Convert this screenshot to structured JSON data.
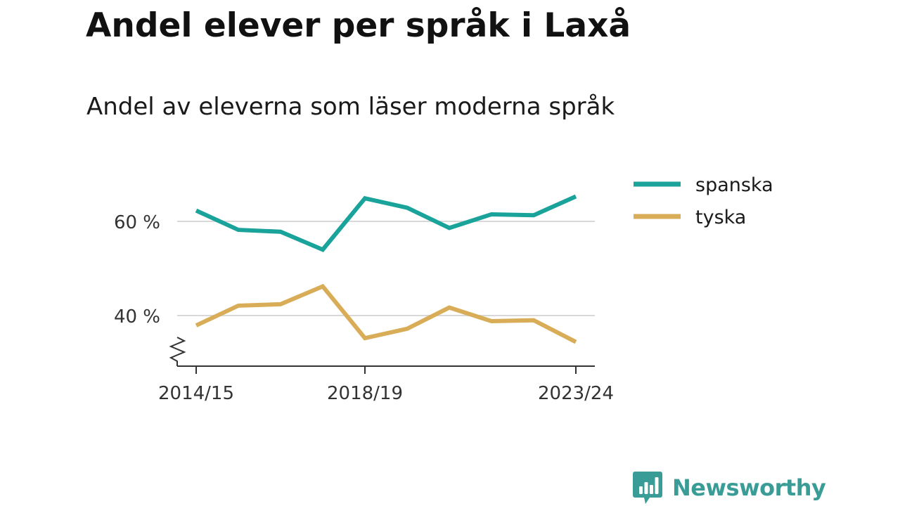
{
  "chart_data": {
    "type": "line",
    "title": "Andel elever per språk i Laxå",
    "subtitle": "Andel av eleverna som läser moderna språk",
    "x": [
      "2014/15",
      "2015/16",
      "2016/17",
      "2017/18",
      "2018/19",
      "2019/20",
      "2020/21",
      "2021/22",
      "2022/23",
      "2023/24"
    ],
    "x_tick_labels": [
      "2014/15",
      "2018/19",
      "2023/24"
    ],
    "series": [
      {
        "name": "spanska",
        "color": "#1aa39a",
        "values": [
          62.3,
          58.2,
          57.8,
          54.0,
          64.9,
          62.9,
          58.6,
          61.5,
          61.3,
          65.3
        ]
      },
      {
        "name": "tyska",
        "color": "#d9ad58",
        "values": [
          37.9,
          42.1,
          42.4,
          46.2,
          35.2,
          37.2,
          41.7,
          38.8,
          39.0,
          34.4
        ]
      }
    ],
    "yticks": [
      40,
      60
    ],
    "ytick_labels": [
      "40 %",
      "60 %"
    ],
    "ylim": [
      30,
      70
    ],
    "y_axis_break": true,
    "grid": "horizontal",
    "legend_position": "right"
  },
  "branding": {
    "name": "Newsworthy",
    "color": "#3a9c96",
    "icon": "newsworthy-logo-icon"
  }
}
